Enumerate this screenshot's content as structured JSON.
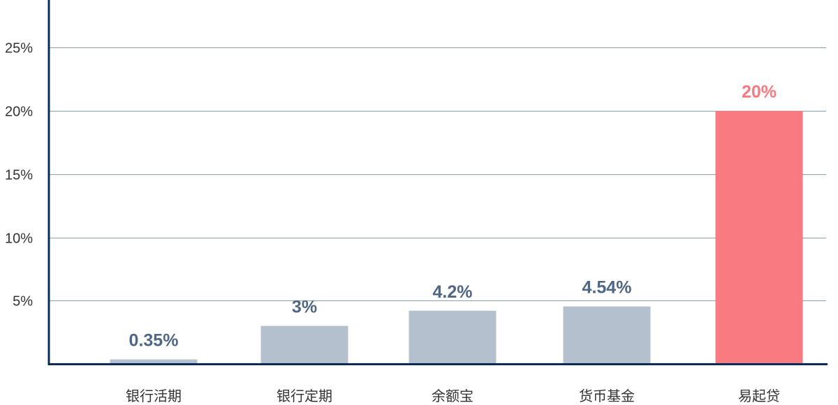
{
  "chart_data": {
    "type": "bar",
    "title": "",
    "xlabel": "",
    "ylabel": "",
    "categories": [
      "银行活期",
      "银行定期",
      "余额宝",
      "货币基金",
      "易起贷"
    ],
    "values": [
      0.35,
      3,
      4.2,
      4.54,
      20
    ],
    "value_labels": [
      "0.35%",
      "3%",
      "4.2%",
      "4.54%",
      "20%"
    ],
    "ylim": [
      0,
      25
    ],
    "yticks": [
      5,
      10,
      15,
      20,
      25
    ],
    "ytick_labels": [
      "5%",
      "10%",
      "15%",
      "20%",
      "25%"
    ],
    "grid": true,
    "legend": "none",
    "colors": {
      "bar_default": "#b4c0ce",
      "bar_highlight": "#f97a80",
      "label_default": "#4f6685",
      "label_highlight": "#f97a80",
      "axis": "#0a2d57",
      "grid": "#8a9db3"
    },
    "highlight_index": 4
  }
}
